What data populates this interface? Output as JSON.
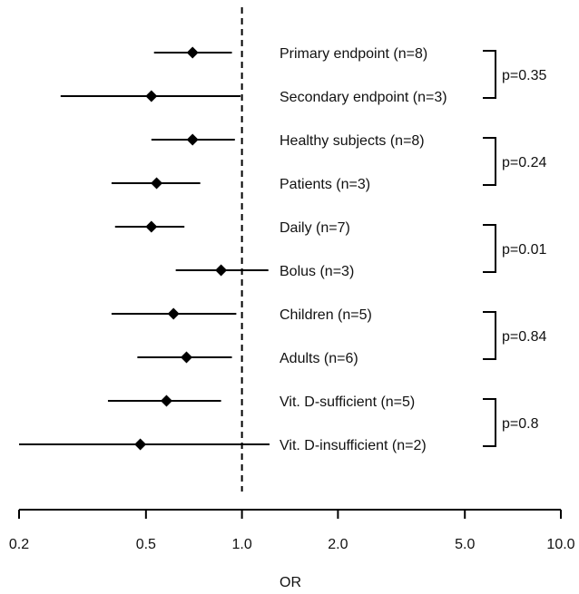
{
  "chart_data": {
    "type": "forest",
    "xlabel": "OR",
    "x_scale": "log",
    "xlim": [
      0.2,
      10.0
    ],
    "xticks": [
      0.2,
      0.5,
      1.0,
      2.0,
      5.0,
      10.0
    ],
    "xtick_labels": [
      "0.2",
      "0.5",
      "1.0",
      "2.0",
      "5.0",
      "10.0"
    ],
    "reference_line": 1.0,
    "rows": [
      {
        "label": "Primary endpoint (n=8)",
        "or": 0.7,
        "lower": 0.53,
        "upper": 0.93
      },
      {
        "label": "Secondary endpoint (n=3)",
        "or": 0.52,
        "lower": 0.27,
        "upper": 0.99
      },
      {
        "label": "Healthy subjects (n=8)",
        "or": 0.7,
        "lower": 0.52,
        "upper": 0.95
      },
      {
        "label": "Patients (n=3)",
        "or": 0.54,
        "lower": 0.39,
        "upper": 0.74
      },
      {
        "label": "Daily (n=7)",
        "or": 0.52,
        "lower": 0.4,
        "upper": 0.66
      },
      {
        "label": "Bolus (n=3)",
        "or": 0.86,
        "lower": 0.62,
        "upper": 1.21
      },
      {
        "label": "Children (n=5)",
        "or": 0.61,
        "lower": 0.39,
        "upper": 0.96
      },
      {
        "label": "Adults (n=6)",
        "or": 0.67,
        "lower": 0.47,
        "upper": 0.93
      },
      {
        "label": "Vit. D-sufficient (n=5)",
        "or": 0.58,
        "lower": 0.38,
        "upper": 0.86
      },
      {
        "label": "Vit. D-insufficient (n=2)",
        "or": 0.48,
        "lower": 0.2,
        "upper": 1.22
      }
    ],
    "comparisons": [
      {
        "rows": [
          0,
          1
        ],
        "p_label": "p=0.35"
      },
      {
        "rows": [
          2,
          3
        ],
        "p_label": "p=0.24"
      },
      {
        "rows": [
          4,
          5
        ],
        "p_label": "p=0.01"
      },
      {
        "rows": [
          6,
          7
        ],
        "p_label": "p=0.84"
      },
      {
        "rows": [
          8,
          9
        ],
        "p_label": "p=0.8"
      }
    ]
  }
}
